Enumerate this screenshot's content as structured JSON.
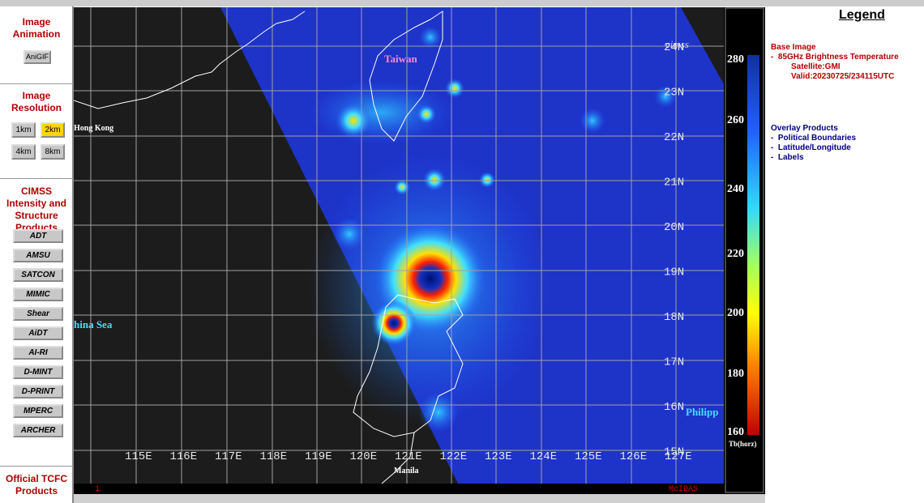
{
  "sidebar": {
    "animation": {
      "title": "Image Animation",
      "buttons": [
        "AniGIF"
      ]
    },
    "resolution": {
      "title": "Image Resolution",
      "buttons": [
        "1km",
        "2km",
        "4km",
        "8km"
      ]
    },
    "products": {
      "title": "CIMSS Intensity and Structure Products",
      "buttons": [
        "ADT",
        "AMSU",
        "SATCON",
        "MIMIC",
        "Shear",
        "AiDT",
        "AI-RI",
        "D-MINT",
        "D-PRINT",
        "MPERC",
        "ARCHER"
      ]
    },
    "official": {
      "title": "Official TCFC Products"
    }
  },
  "map": {
    "lat_labels": [
      "24N",
      "23N",
      "22N",
      "21N",
      "20N",
      "19N",
      "18N",
      "17N",
      "16N",
      "15N"
    ],
    "lon_labels": [
      "115E",
      "116E",
      "117E",
      "118E",
      "119E",
      "120E",
      "121E",
      "122E",
      "123E",
      "124E",
      "125E",
      "126E",
      "127E"
    ],
    "places": [
      "Taiwan",
      "Hong Kong",
      "hina Sea",
      "Philipp",
      "Manila"
    ],
    "footer_left": "1",
    "footer_right": "McIDAS"
  },
  "colorbar": {
    "ticks": [
      "280",
      "260",
      "240",
      "220",
      "200",
      "180",
      "160"
    ],
    "unit": "Tb(horz)"
  },
  "legend": {
    "title": "Legend",
    "base_image": {
      "title": "Base Image",
      "lines": [
        "-  85GHz Brightness Temperature",
        "Satellite:GMI",
        "Valid:20230725/234115UTC"
      ]
    },
    "overlay": {
      "title": "Overlay Products",
      "items": [
        "-  Political Boundaries",
        "-  Latitude/Longitude",
        "-  Labels"
      ]
    }
  }
}
